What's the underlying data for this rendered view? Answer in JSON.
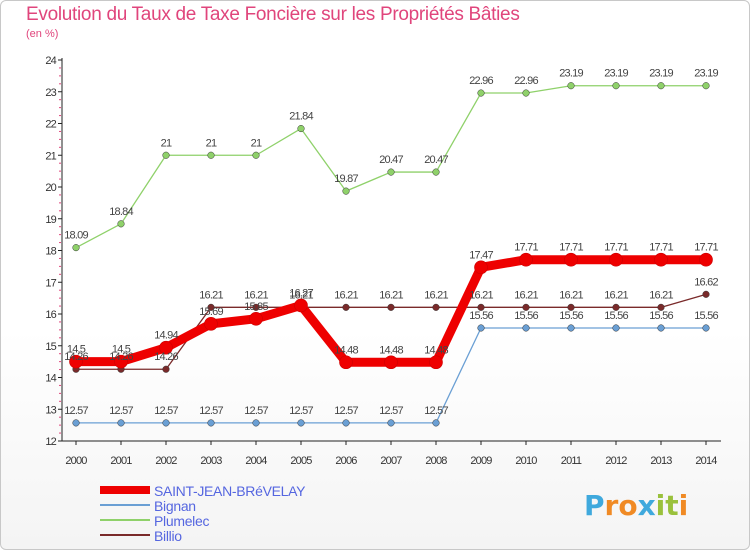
{
  "header": {
    "title": "Evolution du Taux de Taxe Foncière sur les Propriétés Bâties",
    "unit": "(en %)"
  },
  "brand": {
    "letters": [
      "P",
      "r",
      "o",
      "x",
      "i",
      "t",
      "i"
    ],
    "colors": [
      "#3fa9dd",
      "#f08a24",
      "#f08a24",
      "#3fa9dd",
      "#9ac13c",
      "#9ac13c",
      "#f08a24"
    ]
  },
  "chart_data": {
    "type": "line",
    "title": "Evolution du Taux de Taxe Foncière sur les Propriétés Bâties",
    "ylabel": "(en %)",
    "xlabel": "",
    "ylim": [
      12,
      24
    ],
    "yticks": [
      12,
      13,
      14,
      15,
      16,
      17,
      18,
      19,
      20,
      21,
      22,
      23,
      24
    ],
    "x": [
      "2000",
      "2001",
      "2002",
      "2003",
      "2004",
      "2005",
      "2006",
      "2007",
      "2008",
      "2009",
      "2010",
      "2011",
      "2012",
      "2013",
      "2014"
    ],
    "grid": false,
    "legend_position": "bottom-left",
    "series": [
      {
        "name": "SAINT-JEAN-BRéVELAY",
        "color": "#ee0000",
        "values": [
          14.5,
          14.5,
          14.94,
          15.69,
          15.85,
          16.27,
          14.48,
          14.48,
          14.48,
          17.47,
          17.71,
          17.71,
          17.71,
          17.71,
          17.71
        ],
        "labels": [
          "14.5",
          "14.5",
          "14.94",
          "15.69",
          "15.85",
          "16.27",
          "14.48",
          "14.48",
          "14.48",
          "17.47",
          "17.71",
          "17.71",
          "17.71",
          "17.71",
          "17.71"
        ]
      },
      {
        "name": "Bignan",
        "color": "#6a9fd4",
        "values": [
          12.57,
          12.57,
          12.57,
          12.57,
          12.57,
          12.57,
          12.57,
          12.57,
          12.57,
          15.56,
          15.56,
          15.56,
          15.56,
          15.56,
          15.56
        ],
        "labels": [
          "12.57",
          "12.57",
          "12.57",
          "12.57",
          "12.57",
          "12.57",
          "12.57",
          "12.57",
          "12.57",
          "15.56",
          "15.56",
          "15.56",
          "15.56",
          "15.56",
          "15.56"
        ]
      },
      {
        "name": "Plumelec",
        "color": "#8fd16a",
        "values": [
          18.09,
          18.84,
          21,
          21,
          21,
          21.84,
          19.87,
          20.47,
          20.47,
          22.96,
          22.96,
          23.19,
          23.19,
          23.19,
          23.19
        ],
        "labels": [
          "18.09",
          "18.84",
          "21",
          "21",
          "21",
          "21.84",
          "19.87",
          "20.47",
          "20.47",
          "22.96",
          "22.96",
          "23.19",
          "23.19",
          "23.19",
          "23.19"
        ]
      },
      {
        "name": "Billio",
        "color": "#7a2a2a",
        "values": [
          14.26,
          14.26,
          14.26,
          16.21,
          16.21,
          16.21,
          16.21,
          16.21,
          16.21,
          16.21,
          16.21,
          16.21,
          16.21,
          16.21,
          16.62
        ],
        "labels": [
          "14.26",
          "14.26",
          "14.26",
          "16.21",
          "16.21",
          "16.21",
          "16.21",
          "16.21",
          "16.21",
          "16.21",
          "16.21",
          "16.21",
          "16.21",
          "16.21",
          "16.62"
        ]
      }
    ]
  }
}
